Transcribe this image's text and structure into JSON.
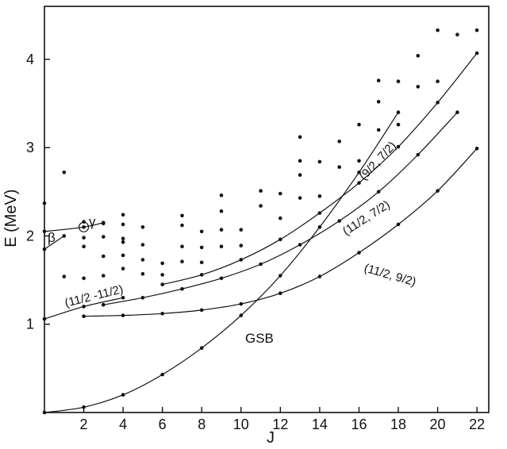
{
  "chart_data": {
    "type": "scatter",
    "title": "",
    "xlabel": "J",
    "ylabel": "E (MeV)",
    "xlim": [
      0,
      22.6
    ],
    "ylim": [
      0,
      4.6
    ],
    "x_ticks": [
      2,
      4,
      6,
      8,
      10,
      12,
      14,
      16,
      18,
      20,
      22
    ],
    "y_ticks": [
      1,
      2,
      3,
      4
    ],
    "series": [
      {
        "name": "GSB",
        "x": [
          0,
          2,
          4,
          6,
          8,
          10,
          12,
          14,
          16,
          18
        ],
        "y": [
          0.0,
          0.06,
          0.2,
          0.43,
          0.73,
          1.1,
          1.55,
          2.1,
          2.72,
          3.4
        ]
      },
      {
        "name": "(11/2, 9/2)",
        "x": [
          2,
          4,
          6,
          8,
          10,
          12,
          14,
          16,
          18,
          20,
          22
        ],
        "y": [
          1.09,
          1.1,
          1.12,
          1.16,
          1.23,
          1.35,
          1.54,
          1.81,
          2.13,
          2.51,
          2.99
        ]
      },
      {
        "name": "(11/2, 7/2)",
        "x": [
          3,
          5,
          7,
          9,
          11,
          13,
          15,
          17,
          19,
          21
        ],
        "y": [
          1.22,
          1.3,
          1.4,
          1.52,
          1.68,
          1.9,
          2.17,
          2.5,
          2.92,
          3.4
        ]
      },
      {
        "name": "(9/2, 7/2)",
        "x": [
          6,
          8,
          10,
          12,
          14,
          16,
          18,
          20,
          22
        ],
        "y": [
          1.45,
          1.56,
          1.73,
          1.96,
          2.26,
          2.6,
          3.01,
          3.51,
          4.07
        ]
      },
      {
        "name": "(11/2 -11/2)",
        "x": [
          0,
          2,
          4
        ],
        "y": [
          1.06,
          1.2,
          1.3
        ]
      },
      {
        "name": "β",
        "x": [
          0,
          1
        ],
        "y": [
          1.85,
          2.0
        ]
      },
      {
        "name": "γ",
        "x": [
          0,
          2,
          3
        ],
        "y": [
          2.05,
          2.1,
          2.15
        ]
      },
      {
        "name": "",
        "x": [
          0,
          1,
          1,
          2,
          2,
          2,
          2,
          3,
          3,
          3,
          3,
          4,
          4,
          4,
          4,
          4,
          4,
          5,
          5,
          5,
          5,
          6,
          6,
          7,
          7,
          7,
          7,
          8,
          8,
          8,
          9,
          9,
          9,
          9,
          10,
          10,
          11,
          11,
          12,
          12,
          13,
          13,
          13,
          13,
          14,
          14,
          15,
          15,
          16,
          16,
          17,
          17,
          17,
          18,
          18,
          19,
          19,
          20,
          20,
          21,
          22
        ],
        "y": [
          2.37,
          2.72,
          1.54,
          1.52,
          1.88,
          1.98,
          2.16,
          1.55,
          1.77,
          1.99,
          2.14,
          1.63,
          1.78,
          1.93,
          1.97,
          2.13,
          2.24,
          1.57,
          1.73,
          1.9,
          2.1,
          1.56,
          1.69,
          1.71,
          1.88,
          2.12,
          2.23,
          1.7,
          1.87,
          2.05,
          1.88,
          2.07,
          2.28,
          2.46,
          1.89,
          2.07,
          2.34,
          2.51,
          2.2,
          2.48,
          2.43,
          2.69,
          2.85,
          3.12,
          2.45,
          2.84,
          2.78,
          3.07,
          2.85,
          3.26,
          3.2,
          3.52,
          3.76,
          3.26,
          3.75,
          3.69,
          4.04,
          3.75,
          4.33,
          4.28,
          4.33
        ]
      }
    ],
    "annotations": [
      "GSB",
      "(11/2, 9/2)",
      "(11/2, 7/2)",
      "(9/2, 7/2)",
      "(11/2 -11/2)",
      "β",
      "γ"
    ]
  }
}
